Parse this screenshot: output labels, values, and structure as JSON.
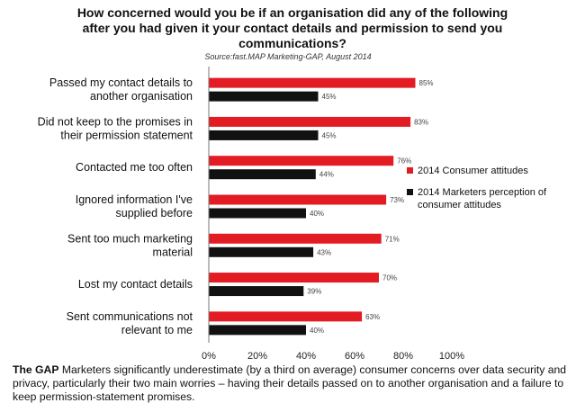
{
  "title": "How concerned would you be if an organisation did any of the following after you had given it your contact details and permission to send you communications?",
  "source": "Source:fast.MAP Marketing-GAP, August 2014",
  "colors": {
    "consumer": "#e31b23",
    "marketers": "#111111",
    "axis": "#777777"
  },
  "chart_data": {
    "type": "bar",
    "orientation": "horizontal",
    "categories": [
      [
        "Passed my contact details to",
        "another organisation"
      ],
      [
        "Did not keep to the promises in",
        "their permission statement"
      ],
      [
        "Contacted me too often"
      ],
      [
        "Ignored information I've",
        "supplied before"
      ],
      [
        "Sent too much marketing",
        "material"
      ],
      [
        "Lost my contact details"
      ],
      [
        "Sent communications not",
        "relevant to me"
      ]
    ],
    "series": [
      {
        "name": "2014 Consumer attitudes",
        "values": [
          85,
          83,
          76,
          73,
          71,
          70,
          63
        ]
      },
      {
        "name": "2014 Marketers perception of consumer attitudes",
        "values": [
          45,
          45,
          44,
          40,
          43,
          39,
          40
        ]
      }
    ],
    "xlim": [
      0,
      100
    ],
    "xticks": [
      "0%",
      "20%",
      "40%",
      "60%",
      "80%",
      "100%"
    ],
    "value_suffix": "%",
    "legend_position": "right",
    "grid": false
  },
  "legend": {
    "consumer": "2014 Consumer attitudes",
    "marketers_line1": "2014 Marketers perception of",
    "marketers_line2": "consumer attitudes"
  },
  "caption": {
    "bold": "The GAP",
    "text": " Marketers significantly underestimate (by a third on average) consumer concerns over data security and privacy, particularly their two main worries – having their details passed on to another organisation and a failure to keep permission-statement promises."
  }
}
